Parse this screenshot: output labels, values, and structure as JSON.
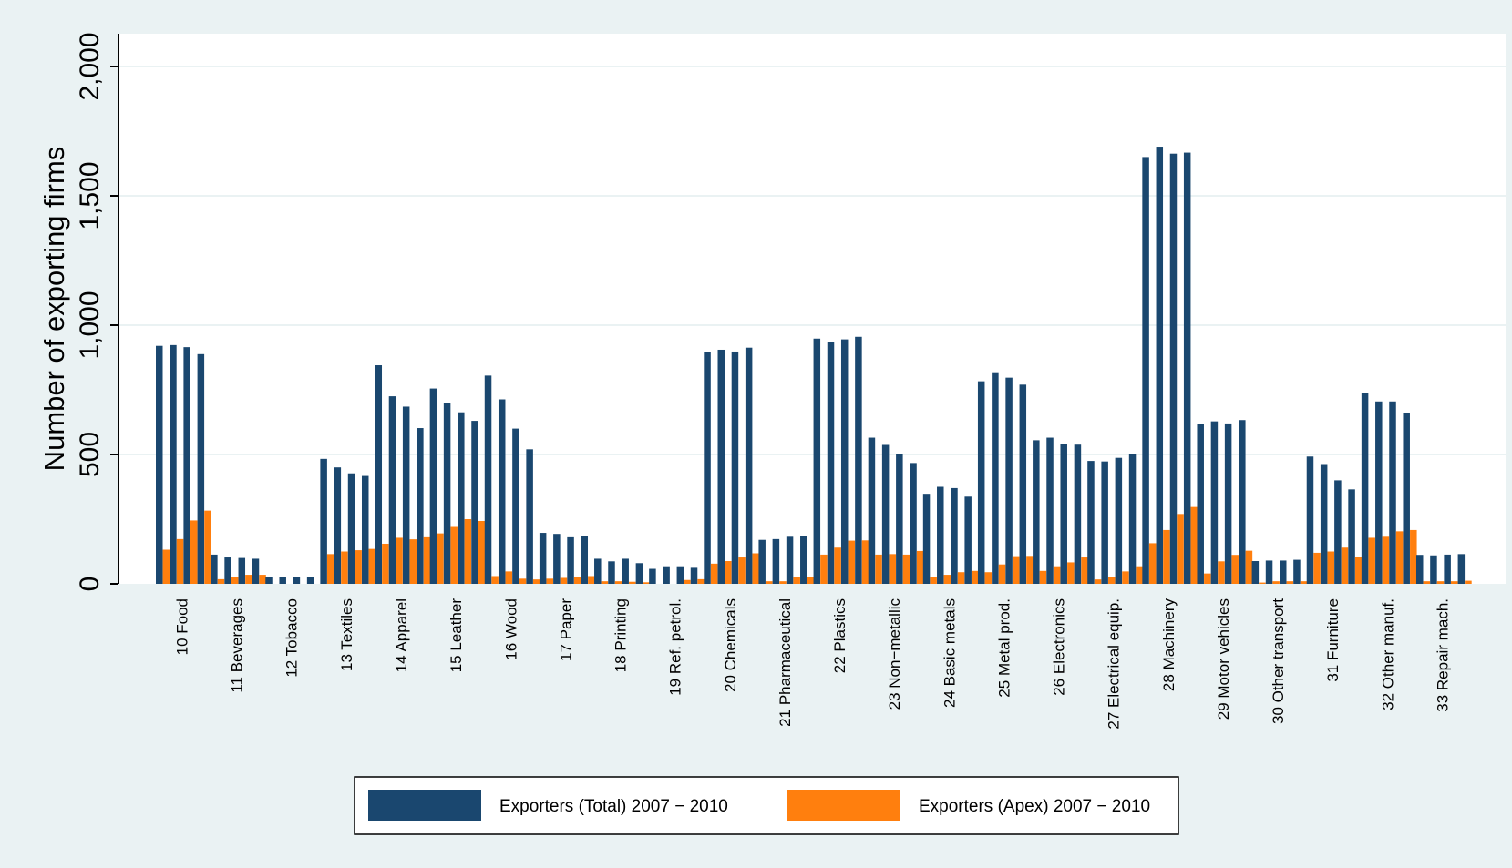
{
  "colors": {
    "outer_bg": "#eaf2f3",
    "plot_bg": "#ffffff",
    "grid": "#eaf2f3",
    "total": "#1a476f",
    "apex": "#ff7f0e",
    "axis": "#000000"
  },
  "chart_data": {
    "type": "bar",
    "title": "",
    "xlabel": "",
    "ylabel": "Number of exporting firms",
    "ylim": [
      0,
      2000
    ],
    "yticks": [
      0,
      500,
      1000,
      1500,
      2000
    ],
    "ytick_labels": [
      "0",
      "500",
      "1,000",
      "1,500",
      "2,000"
    ],
    "grid": true,
    "legend_position": "bottom",
    "bars_per_group": 4,
    "categories": [
      "10 Food",
      "11 Beverages",
      "12 Tobacco",
      "13 Textiles",
      "14 Apparel",
      "15 Leather",
      "16 Wood",
      "17 Paper",
      "18 Printing",
      "19 Ref. petrol.",
      "20 Chemicals",
      "21 Pharmaceutical",
      "22 Plastics",
      "23 Non−metallic",
      "24 Basic metals",
      "25 Metal prod.",
      "26 Electronics",
      "27 Electrical equip.",
      "28 Machinery",
      "29 Motor vehicles",
      "30 Other transport",
      "31 Furniture",
      "32 Other manuf.",
      "33 Repair mach."
    ],
    "series": [
      {
        "name": "Exporters (Total) 2007 − 2010",
        "values": [
          [
            920,
            923,
            915,
            888
          ],
          [
            113,
            102,
            100,
            97
          ],
          [
            28,
            28,
            28,
            25
          ],
          [
            483,
            450,
            427,
            417
          ],
          [
            845,
            725,
            685,
            602
          ],
          [
            755,
            700,
            663,
            630
          ],
          [
            805,
            713,
            600,
            520
          ],
          [
            197,
            193,
            180,
            185
          ],
          [
            97,
            87,
            97,
            80
          ],
          [
            58,
            68,
            68,
            62
          ],
          [
            895,
            905,
            898,
            913
          ],
          [
            170,
            173,
            182,
            185
          ],
          [
            948,
            935,
            945,
            955
          ],
          [
            565,
            537,
            502,
            467
          ],
          [
            348,
            375,
            370,
            337
          ],
          [
            783,
            818,
            797,
            770
          ],
          [
            555,
            565,
            542,
            538
          ],
          [
            475,
            473,
            487,
            502
          ],
          [
            1650,
            1690,
            1663,
            1667
          ],
          [
            617,
            628,
            620,
            633
          ],
          [
            88,
            90,
            90,
            93
          ],
          [
            492,
            463,
            400,
            365
          ],
          [
            738,
            705,
            705,
            662
          ],
          [
            112,
            110,
            113,
            115
          ]
        ]
      },
      {
        "name": "Exporters (Apex) 2007 − 2010",
        "values": [
          [
            132,
            173,
            245,
            283
          ],
          [
            18,
            25,
            35,
            35
          ],
          [
            0,
            0,
            0,
            0
          ],
          [
            115,
            125,
            130,
            135
          ],
          [
            155,
            178,
            172,
            180
          ],
          [
            195,
            220,
            250,
            243
          ],
          [
            30,
            48,
            20,
            17
          ],
          [
            20,
            23,
            25,
            30
          ],
          [
            10,
            10,
            8,
            6
          ],
          [
            0,
            0,
            15,
            18
          ],
          [
            78,
            88,
            102,
            118
          ],
          [
            10,
            10,
            25,
            28
          ],
          [
            113,
            140,
            167,
            168
          ],
          [
            113,
            115,
            113,
            127
          ],
          [
            28,
            35,
            45,
            50
          ],
          [
            45,
            75,
            107,
            108
          ],
          [
            50,
            68,
            83,
            102
          ],
          [
            17,
            28,
            48,
            68
          ],
          [
            157,
            208,
            270,
            297
          ],
          [
            40,
            87,
            112,
            128
          ],
          [
            5,
            10,
            10,
            10
          ],
          [
            120,
            125,
            140,
            105
          ],
          [
            178,
            182,
            203,
            208
          ],
          [
            10,
            10,
            10,
            12
          ]
        ]
      }
    ]
  }
}
